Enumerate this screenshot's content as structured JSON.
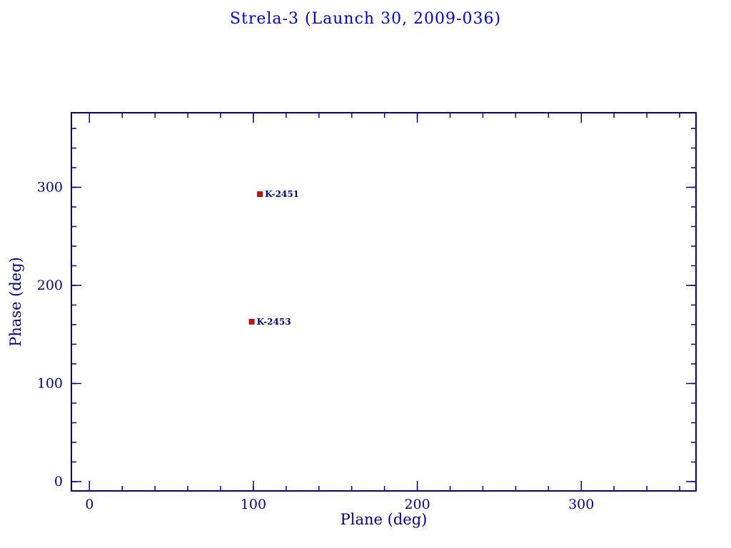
{
  "chart_data": {
    "type": "scatter",
    "title": "Strela-3 (Launch 30, 2009-036)",
    "xlabel": "Plane (deg)",
    "ylabel": "Phase (deg)",
    "xlim": [
      -11,
      370
    ],
    "ylim": [
      -9.5,
      376
    ],
    "xticks": [
      0,
      100,
      200,
      300
    ],
    "yticks": [
      0,
      100,
      200,
      300
    ],
    "minor_tick_step": 20,
    "grid": false,
    "legend": "none",
    "marker": "square",
    "marker_color": "#cc1111",
    "axis_color": "#000080",
    "title_color": "#0000cc",
    "label_color": "#000080",
    "points": [
      {
        "label": "K-2451",
        "x": 104,
        "y": 293
      },
      {
        "label": "K-2453",
        "x": 99,
        "y": 163
      }
    ]
  }
}
